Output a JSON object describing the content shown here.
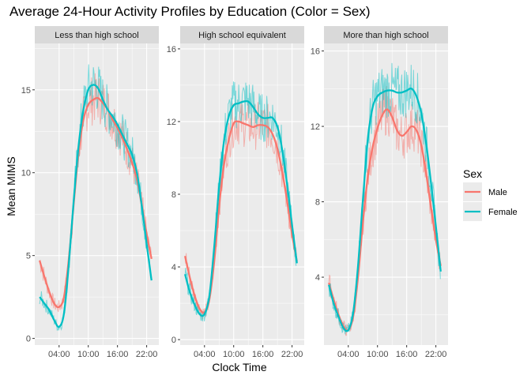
{
  "chart_data": {
    "type": "line",
    "title": "Average 24-Hour Activity Profiles by Education (Color = Sex)",
    "xlabel": "Clock Time",
    "ylabel": "Mean MIMS",
    "x_tick_labels": [
      "04:00",
      "10:00",
      "16:00",
      "22:00"
    ],
    "x_tick_hours": [
      4,
      10,
      16,
      22
    ],
    "xlim_hours": [
      -1,
      24.5
    ],
    "legend": {
      "title": "Sex",
      "position": "right"
    },
    "colors": {
      "Male": "#F8766D",
      "Female": "#00BFC4",
      "panel": "#EBEBEB",
      "strip": "#D9D9D9"
    },
    "series_names": [
      "Male",
      "Female"
    ],
    "panels": [
      {
        "label": "Less than high school",
        "ylim": [
          -0.4,
          17.8
        ],
        "yticks": [
          0,
          5,
          10,
          15
        ],
        "series": [
          {
            "name": "Male",
            "hours": [
              0,
              1,
              2,
              3,
              4,
              5,
              6,
              7,
              8,
              9,
              10,
              11,
              12,
              13,
              14,
              15,
              16,
              17,
              18,
              19,
              20,
              21,
              22,
              23
            ],
            "values": [
              4.7,
              3.7,
              2.8,
              2.1,
              1.9,
              2.5,
              4.8,
              8.1,
              11.2,
              13.2,
              14.1,
              14.4,
              14.5,
              14.2,
              13.8,
              13.2,
              12.7,
              12.1,
              11.4,
              10.6,
              9.6,
              8.0,
              6.3,
              4.8
            ]
          },
          {
            "name": "Female",
            "hours": [
              0,
              1,
              2,
              3,
              4,
              5,
              6,
              7,
              8,
              9,
              10,
              11,
              12,
              13,
              14,
              15,
              16,
              17,
              18,
              19,
              20,
              21,
              22,
              23
            ],
            "values": [
              2.5,
              2.1,
              1.7,
              1.1,
              0.7,
              1.5,
              4.5,
              8.3,
              11.6,
              13.8,
              15.0,
              15.3,
              15.1,
              14.4,
              13.8,
              13.4,
              12.9,
              12.3,
              11.7,
              11.1,
              10.0,
              8.0,
              5.7,
              3.5
            ]
          }
        ]
      },
      {
        "label": "High school equivalent",
        "ylim": [
          -0.3,
          16.3
        ],
        "yticks": [
          0,
          4,
          8,
          12,
          16
        ],
        "series": [
          {
            "name": "Male",
            "hours": [
              0,
              1,
              2,
              3,
              4,
              5,
              6,
              7,
              8,
              9,
              10,
              11,
              12,
              13,
              14,
              15,
              16,
              17,
              18,
              19,
              20,
              21,
              22,
              23
            ],
            "values": [
              4.6,
              3.4,
              2.4,
              1.7,
              1.5,
              2.2,
              4.3,
              7.3,
              9.6,
              11.0,
              11.9,
              12.0,
              11.9,
              11.8,
              11.7,
              11.8,
              11.8,
              11.7,
              11.3,
              10.5,
              9.2,
              7.6,
              5.8,
              4.3
            ]
          },
          {
            "name": "Female",
            "hours": [
              0,
              1,
              2,
              3,
              4,
              5,
              6,
              7,
              8,
              9,
              10,
              11,
              12,
              13,
              14,
              15,
              16,
              17,
              18,
              19,
              20,
              21,
              22,
              23
            ],
            "values": [
              3.6,
              2.6,
              1.9,
              1.4,
              1.4,
              2.4,
              5.1,
              8.4,
              10.9,
              12.3,
              12.9,
              13.0,
              13.1,
              13.1,
              12.8,
              12.4,
              12.2,
              12.2,
              12.2,
              11.7,
              10.4,
              8.5,
              6.3,
              4.2
            ]
          }
        ]
      },
      {
        "label": "More than high school",
        "ylim": [
          0.4,
          16.4
        ],
        "yticks": [
          4,
          8,
          12,
          16
        ],
        "series": [
          {
            "name": "Male",
            "hours": [
              0,
              1,
              2,
              3,
              4,
              5,
              6,
              7,
              8,
              9,
              10,
              11,
              12,
              13,
              14,
              15,
              16,
              17,
              18,
              19,
              20,
              21,
              22,
              23
            ],
            "values": [
              3.7,
              2.8,
              2.0,
              1.4,
              1.2,
              1.9,
              4.0,
              6.9,
              9.3,
              10.9,
              11.9,
              12.6,
              12.9,
              12.5,
              11.8,
              11.5,
              11.7,
              12.0,
              11.8,
              11.0,
              9.5,
              7.7,
              6.0,
              4.6
            ]
          },
          {
            "name": "Female",
            "hours": [
              0,
              1,
              2,
              3,
              4,
              5,
              6,
              7,
              8,
              9,
              10,
              11,
              12,
              13,
              14,
              15,
              16,
              17,
              18,
              19,
              20,
              21,
              22,
              23
            ],
            "values": [
              3.6,
              2.6,
              1.9,
              1.3,
              1.2,
              2.1,
              4.6,
              8.1,
              11.3,
              13.0,
              13.6,
              13.8,
              13.9,
              13.9,
              13.8,
              13.8,
              13.9,
              14.0,
              13.6,
              12.7,
              11.1,
              9.0,
              6.7,
              4.3
            ]
          }
        ]
      }
    ]
  }
}
